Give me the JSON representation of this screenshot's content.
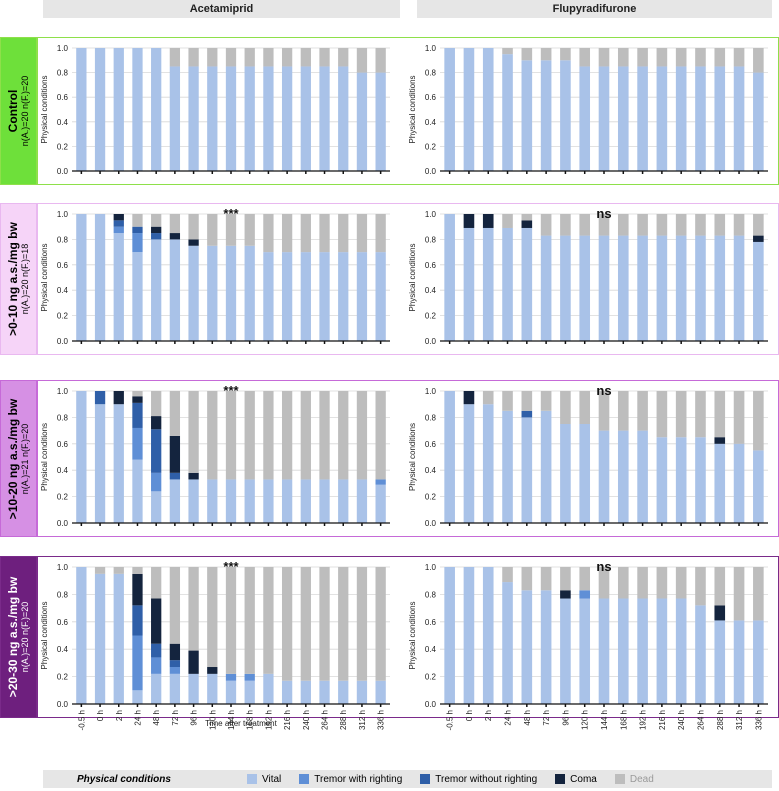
{
  "columns": [
    "Acetamiprid",
    "Flupyradifurone"
  ],
  "rows": [
    {
      "title": "Control",
      "n": "n(A.)=20   n(F.)=20",
      "border": "#8ee04a",
      "fill": "#6ee03a",
      "text_color": "#000000",
      "sig": [
        "",
        ""
      ]
    },
    {
      "title": ">0-10 ng a.s./mg bw",
      "n": "n(A.)=20   n(F.)=18",
      "border": "#e9b8f0",
      "fill": "#f6d4f8",
      "text_color": "#000000",
      "sig": [
        "***",
        "ns"
      ]
    },
    {
      "title": ">10-20 ng a.s./mg bw",
      "n": "n(A.)=21   n(F.)=20",
      "border": "#c66ad8",
      "fill": "#d690e4",
      "text_color": "#000000",
      "sig": [
        "***",
        "ns"
      ]
    },
    {
      "title": ">20-30 ng a.s./mg bw",
      "n": "n(A.)=20   n(F.)=20",
      "border": "#7a2a8a",
      "fill": "#6e1f7e",
      "text_color": "#ffffff",
      "sig": [
        "***",
        "ns"
      ]
    }
  ],
  "legend": {
    "title": "Physical conditions",
    "items": [
      {
        "label": "Vital",
        "color": "#a9c2e8"
      },
      {
        "label": "Tremor with righting",
        "color": "#5f8fd6"
      },
      {
        "label": "Tremor without righting",
        "color": "#2f5fa8"
      },
      {
        "label": "Coma",
        "color": "#14243e"
      },
      {
        "label": "Dead",
        "color": "#bdbdbd"
      }
    ]
  },
  "chart_data": {
    "type": "bar",
    "stacked": true,
    "ylabel": "Physical conditions",
    "xlabel": "Time after treatment",
    "ylim": [
      0,
      1
    ],
    "yticks": [
      "0.0",
      "0.2",
      "0.4",
      "0.6",
      "0.8",
      "1.0"
    ],
    "categories": [
      "-0.5 h",
      "0 h",
      "2 h",
      "24 h",
      "48 h",
      "72 h",
      "96 h",
      "120 h",
      "144 h",
      "168 h",
      "192 h",
      "216 h",
      "240 h",
      "264 h",
      "288 h",
      "312 h",
      "336 h"
    ],
    "series_names": [
      "Vital",
      "Tremor with righting",
      "Tremor without righting",
      "Coma",
      "Dead"
    ],
    "panels": [
      {
        "row": "Control",
        "substance": "Acetamiprid",
        "values": [
          [
            1,
            0,
            0,
            0,
            0
          ],
          [
            1,
            0,
            0,
            0,
            0
          ],
          [
            1,
            0,
            0,
            0,
            0
          ],
          [
            1,
            0,
            0,
            0,
            0
          ],
          [
            1,
            0,
            0,
            0,
            0
          ],
          [
            0.85,
            0,
            0,
            0,
            0.15
          ],
          [
            0.85,
            0,
            0,
            0,
            0.15
          ],
          [
            0.85,
            0,
            0,
            0,
            0.15
          ],
          [
            0.85,
            0,
            0,
            0,
            0.15
          ],
          [
            0.85,
            0,
            0,
            0,
            0.15
          ],
          [
            0.85,
            0,
            0,
            0,
            0.15
          ],
          [
            0.85,
            0,
            0,
            0,
            0.15
          ],
          [
            0.85,
            0,
            0,
            0,
            0.15
          ],
          [
            0.85,
            0,
            0,
            0,
            0.15
          ],
          [
            0.85,
            0,
            0,
            0,
            0.15
          ],
          [
            0.8,
            0,
            0,
            0,
            0.2
          ],
          [
            0.8,
            0,
            0,
            0,
            0.2
          ]
        ]
      },
      {
        "row": "Control",
        "substance": "Flupyradifurone",
        "values": [
          [
            1,
            0,
            0,
            0,
            0
          ],
          [
            1,
            0,
            0,
            0,
            0
          ],
          [
            1,
            0,
            0,
            0,
            0
          ],
          [
            0.95,
            0,
            0,
            0,
            0.05
          ],
          [
            0.9,
            0,
            0,
            0,
            0.1
          ],
          [
            0.9,
            0,
            0,
            0,
            0.1
          ],
          [
            0.9,
            0,
            0,
            0,
            0.1
          ],
          [
            0.85,
            0,
            0,
            0,
            0.15
          ],
          [
            0.85,
            0,
            0,
            0,
            0.15
          ],
          [
            0.85,
            0,
            0,
            0,
            0.15
          ],
          [
            0.85,
            0,
            0,
            0,
            0.15
          ],
          [
            0.85,
            0,
            0,
            0,
            0.15
          ],
          [
            0.85,
            0,
            0,
            0,
            0.15
          ],
          [
            0.85,
            0,
            0,
            0,
            0.15
          ],
          [
            0.85,
            0,
            0,
            0,
            0.15
          ],
          [
            0.85,
            0,
            0,
            0,
            0.15
          ],
          [
            0.8,
            0,
            0,
            0,
            0.2
          ]
        ]
      },
      {
        "row": ">0-10",
        "substance": "Acetamiprid",
        "values": [
          [
            1,
            0,
            0,
            0,
            0
          ],
          [
            1,
            0,
            0,
            0,
            0
          ],
          [
            0.85,
            0.05,
            0.05,
            0.05,
            0
          ],
          [
            0.7,
            0.15,
            0.05,
            0,
            0.1
          ],
          [
            0.8,
            0,
            0.05,
            0.05,
            0.1
          ],
          [
            0.8,
            0,
            0,
            0.05,
            0.15
          ],
          [
            0.75,
            0,
            0,
            0.05,
            0.2
          ],
          [
            0.75,
            0,
            0,
            0,
            0.25
          ],
          [
            0.75,
            0,
            0,
            0,
            0.25
          ],
          [
            0.75,
            0,
            0,
            0,
            0.25
          ],
          [
            0.7,
            0,
            0,
            0,
            0.3
          ],
          [
            0.7,
            0,
            0,
            0,
            0.3
          ],
          [
            0.7,
            0,
            0,
            0,
            0.3
          ],
          [
            0.7,
            0,
            0,
            0,
            0.3
          ],
          [
            0.7,
            0,
            0,
            0,
            0.3
          ],
          [
            0.7,
            0,
            0,
            0,
            0.3
          ],
          [
            0.7,
            0,
            0,
            0,
            0.3
          ]
        ]
      },
      {
        "row": ">0-10",
        "substance": "Flupyradifurone",
        "values": [
          [
            1,
            0,
            0,
            0,
            0
          ],
          [
            0.89,
            0,
            0,
            0.11,
            0
          ],
          [
            0.89,
            0,
            0,
            0.11,
            0
          ],
          [
            0.89,
            0,
            0,
            0,
            0.11
          ],
          [
            0.89,
            0,
            0,
            0.06,
            0.05
          ],
          [
            0.83,
            0,
            0,
            0,
            0.17
          ],
          [
            0.83,
            0,
            0,
            0,
            0.17
          ],
          [
            0.83,
            0,
            0,
            0,
            0.17
          ],
          [
            0.83,
            0,
            0,
            0,
            0.17
          ],
          [
            0.83,
            0,
            0,
            0,
            0.17
          ],
          [
            0.83,
            0,
            0,
            0,
            0.17
          ],
          [
            0.83,
            0,
            0,
            0,
            0.17
          ],
          [
            0.83,
            0,
            0,
            0,
            0.17
          ],
          [
            0.83,
            0,
            0,
            0,
            0.17
          ],
          [
            0.83,
            0,
            0,
            0,
            0.17
          ],
          [
            0.83,
            0,
            0,
            0,
            0.17
          ],
          [
            0.78,
            0,
            0,
            0.05,
            0.17
          ]
        ]
      },
      {
        "row": ">10-20",
        "substance": "Acetamiprid",
        "values": [
          [
            1,
            0,
            0,
            0,
            0
          ],
          [
            0.9,
            0,
            0.1,
            0,
            0
          ],
          [
            0.9,
            0,
            0,
            0.1,
            0
          ],
          [
            0.48,
            0.24,
            0.19,
            0.05,
            0.04
          ],
          [
            0.24,
            0.14,
            0.33,
            0.1,
            0.19
          ],
          [
            0.33,
            0,
            0.05,
            0.28,
            0.34
          ],
          [
            0.33,
            0,
            0,
            0.05,
            0.62
          ],
          [
            0.33,
            0,
            0,
            0,
            0.67
          ],
          [
            0.33,
            0,
            0,
            0,
            0.67
          ],
          [
            0.33,
            0,
            0,
            0,
            0.67
          ],
          [
            0.33,
            0,
            0,
            0,
            0.67
          ],
          [
            0.33,
            0,
            0,
            0,
            0.67
          ],
          [
            0.33,
            0,
            0,
            0,
            0.67
          ],
          [
            0.33,
            0,
            0,
            0,
            0.67
          ],
          [
            0.33,
            0,
            0,
            0,
            0.67
          ],
          [
            0.33,
            0,
            0,
            0,
            0.67
          ],
          [
            0.29,
            0.04,
            0,
            0,
            0.67
          ]
        ]
      },
      {
        "row": ">10-20",
        "substance": "Flupyradifurone",
        "values": [
          [
            1,
            0,
            0,
            0,
            0
          ],
          [
            0.9,
            0,
            0,
            0.1,
            0
          ],
          [
            0.9,
            0,
            0,
            0,
            0.1
          ],
          [
            0.85,
            0,
            0,
            0,
            0.15
          ],
          [
            0.8,
            0,
            0.05,
            0,
            0.15
          ],
          [
            0.85,
            0,
            0,
            0,
            0.15
          ],
          [
            0.75,
            0,
            0,
            0,
            0.25
          ],
          [
            0.75,
            0,
            0,
            0,
            0.25
          ],
          [
            0.7,
            0,
            0,
            0,
            0.3
          ],
          [
            0.7,
            0,
            0,
            0,
            0.3
          ],
          [
            0.7,
            0,
            0,
            0,
            0.3
          ],
          [
            0.65,
            0,
            0,
            0,
            0.35
          ],
          [
            0.65,
            0,
            0,
            0,
            0.35
          ],
          [
            0.65,
            0,
            0,
            0,
            0.35
          ],
          [
            0.6,
            0,
            0,
            0.05,
            0.35
          ],
          [
            0.6,
            0,
            0,
            0,
            0.4
          ],
          [
            0.55,
            0,
            0,
            0,
            0.45
          ]
        ]
      },
      {
        "row": ">20-30",
        "substance": "Acetamiprid",
        "values": [
          [
            1,
            0,
            0,
            0,
            0
          ],
          [
            0.95,
            0,
            0,
            0,
            0.05
          ],
          [
            0.95,
            0,
            0,
            0,
            0.05
          ],
          [
            0.1,
            0.4,
            0.22,
            0.23,
            0.05
          ],
          [
            0.22,
            0.12,
            0.1,
            0.33,
            0.23
          ],
          [
            0.22,
            0.05,
            0.05,
            0.12,
            0.56
          ],
          [
            0.22,
            0,
            0,
            0.17,
            0.61
          ],
          [
            0.22,
            0,
            0,
            0.05,
            0.73
          ],
          [
            0.17,
            0.05,
            0,
            0,
            0.78
          ],
          [
            0.17,
            0.05,
            0,
            0,
            0.78
          ],
          [
            0.22,
            0,
            0,
            0,
            0.78
          ],
          [
            0.17,
            0,
            0,
            0,
            0.83
          ],
          [
            0.17,
            0,
            0,
            0,
            0.83
          ],
          [
            0.17,
            0,
            0,
            0,
            0.83
          ],
          [
            0.17,
            0,
            0,
            0,
            0.83
          ],
          [
            0.17,
            0,
            0,
            0,
            0.83
          ],
          [
            0.17,
            0,
            0,
            0,
            0.83
          ]
        ]
      },
      {
        "row": ">20-30",
        "substance": "Flupyradifurone",
        "values": [
          [
            1,
            0,
            0,
            0,
            0
          ],
          [
            1,
            0,
            0,
            0,
            0
          ],
          [
            1,
            0,
            0,
            0,
            0
          ],
          [
            0.89,
            0,
            0,
            0,
            0.11
          ],
          [
            0.83,
            0,
            0,
            0,
            0.17
          ],
          [
            0.83,
            0,
            0,
            0,
            0.17
          ],
          [
            0.77,
            0,
            0,
            0.06,
            0.17
          ],
          [
            0.77,
            0.06,
            0,
            0,
            0.17
          ],
          [
            0.77,
            0,
            0,
            0,
            0.23
          ],
          [
            0.77,
            0,
            0,
            0,
            0.23
          ],
          [
            0.77,
            0,
            0,
            0,
            0.23
          ],
          [
            0.77,
            0,
            0,
            0,
            0.23
          ],
          [
            0.77,
            0,
            0,
            0,
            0.23
          ],
          [
            0.72,
            0,
            0,
            0,
            0.28
          ],
          [
            0.61,
            0,
            0,
            0.11,
            0.28
          ],
          [
            0.61,
            0,
            0,
            0,
            0.39
          ],
          [
            0.61,
            0,
            0,
            0,
            0.39
          ]
        ]
      }
    ]
  }
}
